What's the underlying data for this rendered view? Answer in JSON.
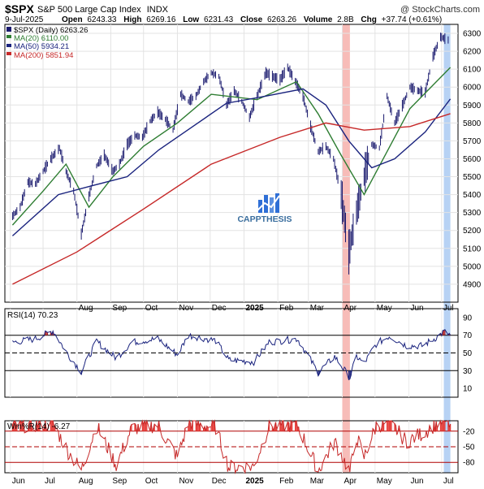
{
  "header": {
    "symbol": "$SPX",
    "name": "S&P 500 Large Cap Index",
    "exchange": "INDX",
    "watermark": "@ StockCharts.com",
    "date": "9-Jul-2025",
    "open_label": "Open",
    "open": "6243.33",
    "high_label": "High",
    "high": "6269.16",
    "low_label": "Low",
    "low": "6231.43",
    "close_label": "Close",
    "close": "6263.26",
    "volume_label": "Volume",
    "volume": "2.8B",
    "chg_label": "Chg",
    "chg": "+37.74 (+0.61%)"
  },
  "legend": {
    "price": "$SPX (Daily) 6263.26",
    "ma20": "MA(20) 6110.00",
    "ma50": "MA(50) 5934.21",
    "ma200": "MA(200) 5851.94"
  },
  "logo_text": "CAPPTHESIS",
  "rsi_label": "RSI(14) 70.23",
  "wr_label": "Wm%R(14) -6.27",
  "colors": {
    "price": "#1a1a6e",
    "ma20": "#2e7d32",
    "ma50": "#1a237e",
    "ma200": "#c62828",
    "red_band": "#f4a6a0",
    "blue_band": "#9fc3f0",
    "rsi_fill_hi": "#b22222",
    "wr_fill": "#e53935",
    "logo_blue": "#2f6fd6",
    "logo_text": "#3a6e9e"
  },
  "chart_data": [
    {
      "type": "ohlc",
      "panel": "price",
      "title": "$SPX S&P 500 Large Cap Index INDX",
      "x_axis": [
        "Jun",
        "Jul",
        "Aug",
        "Sep",
        "Oct",
        "Nov",
        "Dec",
        "2025",
        "Feb",
        "Mar",
        "Apr",
        "May",
        "Jun",
        "Jul"
      ],
      "x_ticks": [
        "Aug",
        "Sep",
        "Oct",
        "Nov",
        "Dec",
        "2025",
        "Feb",
        "Mar",
        "Apr",
        "May",
        "Jun",
        "Jul"
      ],
      "y_ticks": [
        4900,
        5000,
        5100,
        5200,
        5300,
        5400,
        5500,
        5600,
        5700,
        5800,
        5900,
        6000,
        6100,
        6200,
        6300
      ],
      "ylim": [
        4800,
        6350
      ],
      "highlight_bands": [
        {
          "color": "red",
          "start": "2025-04-01",
          "end": "2025-04-08"
        },
        {
          "color": "blue",
          "start": "2025-07-03",
          "end": "2025-07-09"
        }
      ],
      "series": [
        {
          "name": "$SPX (Daily)",
          "points": [
            [
              "2024-06-03",
              5280
            ],
            [
              "2024-06-10",
              5330
            ],
            [
              "2024-06-17",
              5470
            ],
            [
              "2024-06-24",
              5460
            ],
            [
              "2024-07-01",
              5530
            ],
            [
              "2024-07-08",
              5600
            ],
            [
              "2024-07-16",
              5660
            ],
            [
              "2024-07-22",
              5530
            ],
            [
              "2024-07-29",
              5420
            ],
            [
              "2024-08-05",
              5180
            ],
            [
              "2024-08-12",
              5390
            ],
            [
              "2024-08-19",
              5560
            ],
            [
              "2024-08-26",
              5620
            ],
            [
              "2024-09-03",
              5530
            ],
            [
              "2024-09-09",
              5570
            ],
            [
              "2024-09-16",
              5680
            ],
            [
              "2024-09-23",
              5730
            ],
            [
              "2024-09-30",
              5720
            ],
            [
              "2024-10-07",
              5810
            ],
            [
              "2024-10-14",
              5860
            ],
            [
              "2024-10-21",
              5820
            ],
            [
              "2024-10-28",
              5760
            ],
            [
              "2024-11-04",
              5960
            ],
            [
              "2024-11-11",
              5920
            ],
            [
              "2024-11-18",
              5950
            ],
            [
              "2024-11-25",
              6030
            ],
            [
              "2024-12-02",
              6080
            ],
            [
              "2024-12-09",
              6060
            ],
            [
              "2024-12-16",
              5900
            ],
            [
              "2024-12-23",
              5980
            ],
            [
              "2024-12-30",
              5920
            ],
            [
              "2025-01-06",
              5830
            ],
            [
              "2025-01-13",
              5950
            ],
            [
              "2025-01-21",
              6080
            ],
            [
              "2025-01-27",
              6060
            ],
            [
              "2025-02-03",
              6040
            ],
            [
              "2025-02-10",
              6110
            ],
            [
              "2025-02-18",
              6020
            ],
            [
              "2025-02-24",
              5950
            ],
            [
              "2025-03-03",
              5780
            ],
            [
              "2025-03-10",
              5640
            ],
            [
              "2025-03-17",
              5670
            ],
            [
              "2025-03-24",
              5600
            ],
            [
              "2025-03-31",
              5400
            ],
            [
              "2025-04-07",
              5080
            ],
            [
              "2025-04-14",
              5300
            ],
            [
              "2025-04-21",
              5500
            ],
            [
              "2025-04-28",
              5680
            ],
            [
              "2025-05-05",
              5660
            ],
            [
              "2025-05-12",
              5950
            ],
            [
              "2025-05-19",
              5800
            ],
            [
              "2025-05-27",
              5910
            ],
            [
              "2025-06-02",
              6000
            ],
            [
              "2025-06-09",
              5980
            ],
            [
              "2025-06-16",
              5970
            ],
            [
              "2025-06-23",
              6170
            ],
            [
              "2025-06-30",
              6280
            ],
            [
              "2025-07-07",
              6263
            ]
          ]
        },
        {
          "name": "MA(20)",
          "points": [
            [
              "2024-06-03",
              5230
            ],
            [
              "2024-07-01",
              5420
            ],
            [
              "2024-07-22",
              5570
            ],
            [
              "2024-08-12",
              5330
            ],
            [
              "2024-09-03",
              5500
            ],
            [
              "2024-10-01",
              5670
            ],
            [
              "2024-11-01",
              5800
            ],
            [
              "2024-12-02",
              5960
            ],
            [
              "2025-01-13",
              5930
            ],
            [
              "2025-02-18",
              6030
            ],
            [
              "2025-03-10",
              5850
            ],
            [
              "2025-03-31",
              5620
            ],
            [
              "2025-04-21",
              5400
            ],
            [
              "2025-05-12",
              5640
            ],
            [
              "2025-06-02",
              5880
            ],
            [
              "2025-07-09",
              6110
            ]
          ]
        },
        {
          "name": "MA(50)",
          "points": [
            [
              "2024-06-03",
              5170
            ],
            [
              "2024-07-15",
              5400
            ],
            [
              "2024-08-15",
              5450
            ],
            [
              "2024-09-16",
              5500
            ],
            [
              "2024-10-15",
              5650
            ],
            [
              "2024-11-15",
              5780
            ],
            [
              "2024-12-16",
              5910
            ],
            [
              "2025-01-21",
              5950
            ],
            [
              "2025-02-24",
              5990
            ],
            [
              "2025-03-17",
              5900
            ],
            [
              "2025-04-07",
              5700
            ],
            [
              "2025-04-28",
              5550
            ],
            [
              "2025-05-19",
              5600
            ],
            [
              "2025-06-16",
              5750
            ],
            [
              "2025-07-09",
              5934
            ]
          ]
        },
        {
          "name": "MA(200)",
          "points": [
            [
              "2024-06-03",
              4900
            ],
            [
              "2024-08-01",
              5080
            ],
            [
              "2024-10-01",
              5320
            ],
            [
              "2024-12-02",
              5570
            ],
            [
              "2025-02-03",
              5720
            ],
            [
              "2025-03-17",
              5800
            ],
            [
              "2025-04-21",
              5760
            ],
            [
              "2025-06-02",
              5780
            ],
            [
              "2025-07-09",
              5852
            ]
          ]
        }
      ]
    },
    {
      "type": "line",
      "panel": "rsi",
      "title": "RSI(14) 70.23",
      "y_ticks": [
        10,
        30,
        50,
        70,
        90
      ],
      "ylim": [
        0,
        100
      ],
      "reference_lines": [
        30,
        70
      ],
      "center_line": 50,
      "series": [
        {
          "name": "RSI(14)",
          "points": [
            [
              "2024-06-03",
              62
            ],
            [
              "2024-06-24",
              66
            ],
            [
              "2024-07-10",
              75
            ],
            [
              "2024-07-24",
              48
            ],
            [
              "2024-08-05",
              29
            ],
            [
              "2024-08-19",
              63
            ],
            [
              "2024-09-06",
              44
            ],
            [
              "2024-09-20",
              62
            ],
            [
              "2024-10-14",
              66
            ],
            [
              "2024-11-01",
              48
            ],
            [
              "2024-11-11",
              70
            ],
            [
              "2024-12-06",
              64
            ],
            [
              "2024-12-18",
              42
            ],
            [
              "2025-01-10",
              40
            ],
            [
              "2025-01-24",
              62
            ],
            [
              "2025-02-19",
              66
            ],
            [
              "2025-03-10",
              28
            ],
            [
              "2025-03-25",
              46
            ],
            [
              "2025-04-08",
              22
            ],
            [
              "2025-04-14",
              46
            ],
            [
              "2025-04-21",
              38
            ],
            [
              "2025-05-02",
              60
            ],
            [
              "2025-05-14",
              69
            ],
            [
              "2025-05-30",
              58
            ],
            [
              "2025-06-13",
              58
            ],
            [
              "2025-06-27",
              68
            ],
            [
              "2025-07-03",
              74
            ],
            [
              "2025-07-09",
              70.23
            ]
          ]
        }
      ]
    },
    {
      "type": "line",
      "panel": "williams_r",
      "title": "Wm%R(14) -6.27",
      "y_ticks": [
        -20,
        -50,
        -80
      ],
      "ylim": [
        -100,
        0
      ],
      "reference_lines": [
        -20,
        -80
      ],
      "center_line": -50,
      "series": [
        {
          "name": "Wm%R(14)",
          "points": [
            [
              "2024-06-03",
              -10
            ],
            [
              "2024-07-10",
              -5
            ],
            [
              "2024-07-24",
              -60
            ],
            [
              "2024-08-05",
              -95
            ],
            [
              "2024-08-19",
              -10
            ],
            [
              "2024-09-06",
              -85
            ],
            [
              "2024-09-20",
              -15
            ],
            [
              "2024-10-14",
              -8
            ],
            [
              "2024-11-01",
              -70
            ],
            [
              "2024-11-11",
              -5
            ],
            [
              "2024-12-06",
              -12
            ],
            [
              "2024-12-18",
              -90
            ],
            [
              "2025-01-10",
              -88
            ],
            [
              "2025-01-24",
              -10
            ],
            [
              "2025-02-19",
              -8
            ],
            [
              "2025-03-10",
              -96
            ],
            [
              "2025-03-25",
              -40
            ],
            [
              "2025-04-08",
              -98
            ],
            [
              "2025-04-14",
              -30
            ],
            [
              "2025-04-21",
              -70
            ],
            [
              "2025-05-02",
              -10
            ],
            [
              "2025-05-14",
              -3
            ],
            [
              "2025-05-30",
              -40
            ],
            [
              "2025-06-13",
              -25
            ],
            [
              "2025-06-27",
              -5
            ],
            [
              "2025-07-03",
              -2
            ],
            [
              "2025-07-09",
              -6.27
            ]
          ]
        }
      ]
    }
  ]
}
